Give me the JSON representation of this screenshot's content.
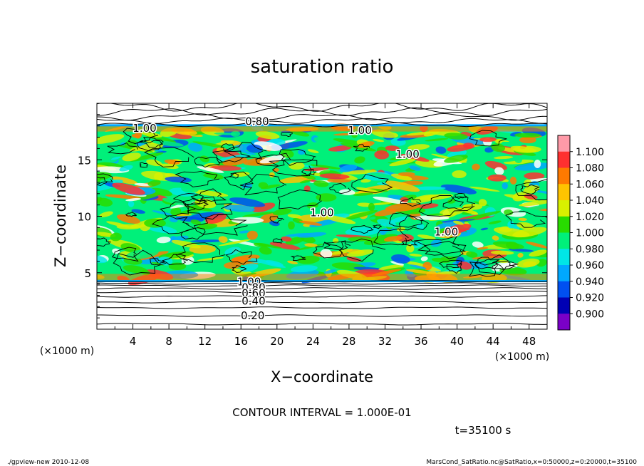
{
  "chart_data": {
    "type": "heatmap",
    "title": "saturation ratio",
    "xlabel": "X−coordinate",
    "ylabel": "Z−coordinate",
    "x_unit": "(×1000 m)",
    "y_unit": "(×1000 m)",
    "xlim": [
      0,
      50
    ],
    "ylim": [
      0,
      20
    ],
    "x_ticks": [
      4,
      8,
      12,
      16,
      20,
      24,
      28,
      32,
      36,
      40,
      44,
      48
    ],
    "y_ticks": [
      5,
      10,
      15
    ],
    "colorbar": {
      "levels": [
        "1.100",
        "1.080",
        "1.060",
        "1.040",
        "1.020",
        "1.000",
        "0.980",
        "0.960",
        "0.940",
        "0.920",
        "0.900"
      ],
      "colors": [
        "#ff9aa8",
        "#ff3030",
        "#ff7a00",
        "#ffc400",
        "#d8f000",
        "#28dc00",
        "#00f07a",
        "#00e6e6",
        "#00a8ff",
        "#0050f0",
        "#0000b4",
        "#7a00c8"
      ]
    },
    "contour_labels": [
      {
        "text": "0.80",
        "x": 17.8,
        "z": 18.4
      },
      {
        "text": "1.00",
        "x": 5.3,
        "z": 17.8
      },
      {
        "text": "1.00",
        "x": 29.2,
        "z": 17.6
      },
      {
        "text": "1.00",
        "x": 34.5,
        "z": 15.5
      },
      {
        "text": "1.00",
        "x": 25.0,
        "z": 10.3
      },
      {
        "text": "1.00",
        "x": 38.8,
        "z": 8.6
      },
      {
        "text": "1.00",
        "x": 16.9,
        "z": 4.2
      },
      {
        "text": "0.80",
        "x": 17.4,
        "z": 3.7
      },
      {
        "text": "0.60",
        "x": 17.4,
        "z": 3.2
      },
      {
        "text": "0.40",
        "x": 17.4,
        "z": 2.5
      },
      {
        "text": "0.20",
        "x": 17.3,
        "z": 1.2
      }
    ],
    "bottom_isolines_z": [
      0.45,
      1.2,
      1.9,
      2.4,
      2.9,
      3.3,
      3.6,
      3.85,
      4.05,
      4.25
    ],
    "top_isolines_z": [
      18.1,
      18.45,
      18.8,
      19.25,
      19.7
    ],
    "contour_interval": "CONTOUR INTERVAL = 1.000E-01",
    "time": "t=35100 s"
  },
  "footer": {
    "left": "./gpview-new   2010-12-08",
    "right": "MarsCond_SatRatio.nc@SatRatio,x=0:50000,z=0:20000,t=35100"
  }
}
